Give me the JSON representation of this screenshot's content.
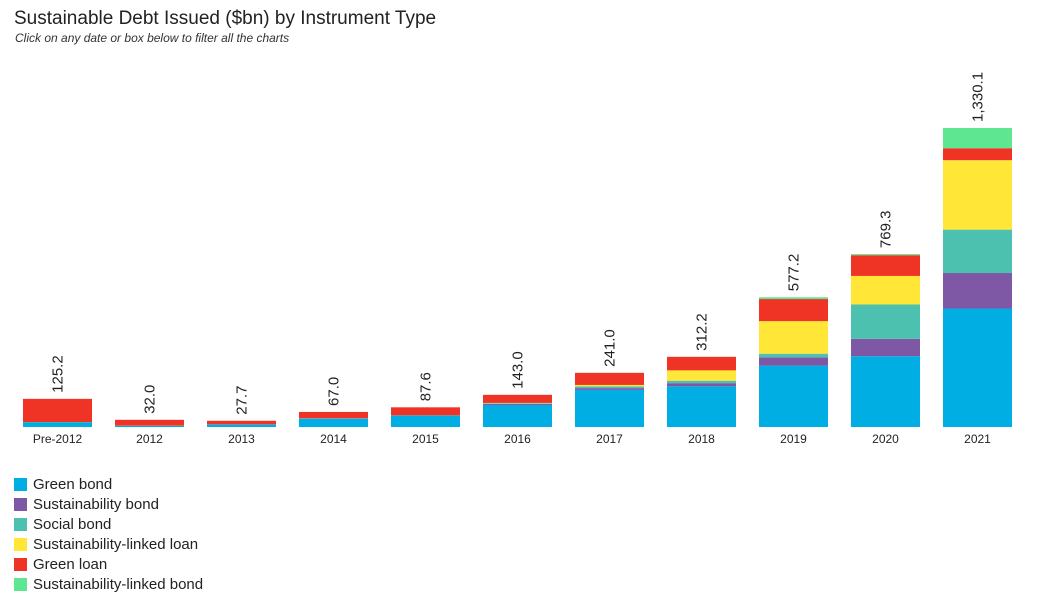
{
  "header": {
    "title": "Sustainable Debt Issued ($bn) by Instrument Type",
    "subtitle": "Click on any date or box below to filter all the charts"
  },
  "chart_data": {
    "type": "bar",
    "stacked": true,
    "title": "Sustainable Debt Issued ($bn) by Instrument Type",
    "categories": [
      "Pre-2012",
      "2012",
      "2013",
      "2014",
      "2015",
      "2016",
      "2017",
      "2018",
      "2019",
      "2020",
      "2021"
    ],
    "totals": [
      125.2,
      32.0,
      27.7,
      67.0,
      87.6,
      143.0,
      241.0,
      312.2,
      577.2,
      769.3,
      1330.1
    ],
    "total_labels": [
      "125.2",
      "32.0",
      "27.7",
      "67.0",
      "87.6",
      "143.0",
      "241.0",
      "312.2",
      "577.2",
      "769.3",
      "1,330.1"
    ],
    "ylim": [
      0,
      1330.1
    ],
    "series": [
      {
        "name": "Green bond",
        "color": "#00AEE4",
        "values": [
          20,
          5,
          11,
          37,
          49,
          98,
          165,
          181,
          273,
          315,
          527
        ]
      },
      {
        "name": "Sustainability bond",
        "color": "#7E57A5",
        "values": [
          0,
          0,
          0,
          1,
          2,
          5,
          8,
          14,
          37,
          77,
          158
        ]
      },
      {
        "name": "Social bond",
        "color": "#4DC1B0",
        "values": [
          2,
          1,
          1,
          1,
          2,
          3,
          8,
          11,
          16,
          153,
          193
        ]
      },
      {
        "name": "Sustainability-linked loan",
        "color": "#FFE637",
        "values": [
          0,
          0,
          0,
          0,
          0,
          1,
          6,
          46,
          145,
          127,
          309
        ]
      },
      {
        "name": "Green loan",
        "color": "#EF3426",
        "values": [
          103.2,
          26.0,
          15.7,
          28.0,
          34.6,
          36.0,
          54.0,
          60.2,
          98.2,
          92.3,
          53.1
        ]
      },
      {
        "name": "Sustainability-linked bond",
        "color": "#5EE690",
        "values": [
          0,
          0,
          0,
          0,
          0,
          0,
          0,
          0,
          8,
          5,
          90
        ]
      }
    ]
  }
}
